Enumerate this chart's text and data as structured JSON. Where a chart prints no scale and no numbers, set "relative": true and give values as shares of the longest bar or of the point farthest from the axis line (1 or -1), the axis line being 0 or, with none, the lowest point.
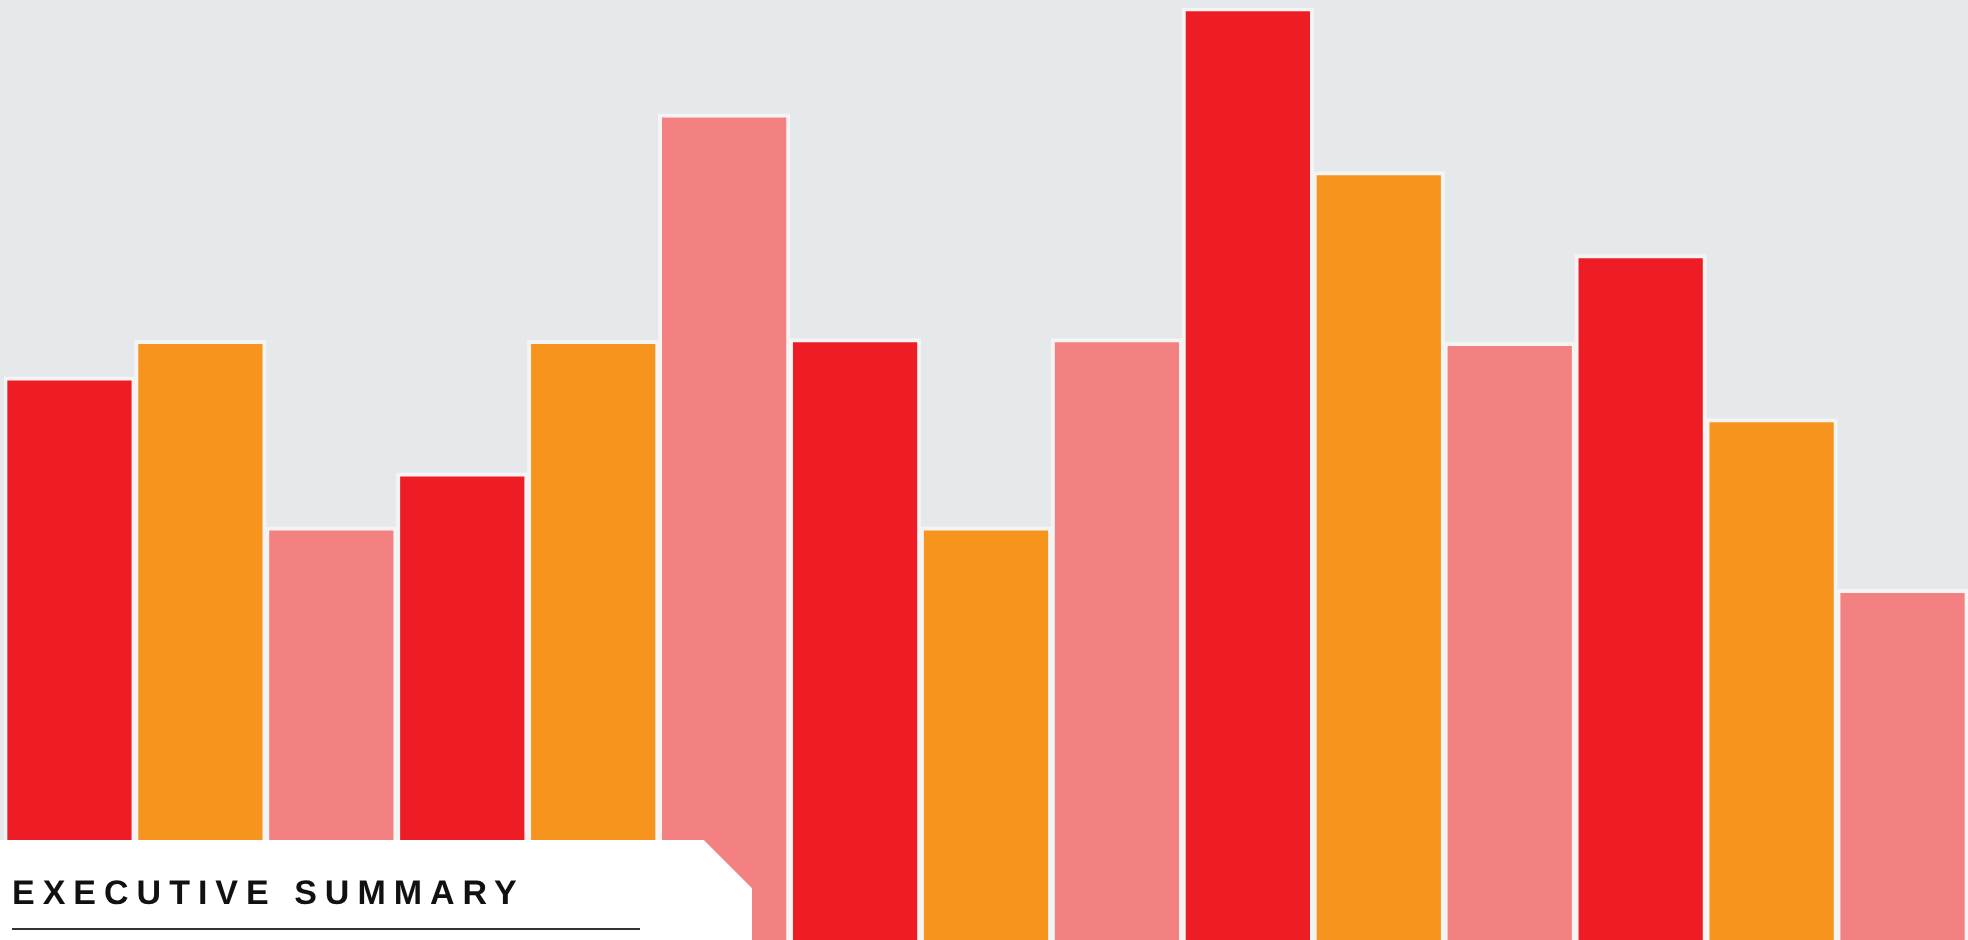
{
  "chart_data": {
    "type": "bar",
    "title": "EXECUTIVE SUMMARY",
    "relative": true,
    "categories": [
      null,
      null,
      null,
      null,
      null,
      null,
      null,
      null,
      null,
      null,
      null,
      null,
      null,
      null,
      null
    ],
    "values": [
      0.604,
      0.643,
      0.443,
      0.501,
      0.643,
      0.886,
      0.645,
      0.443,
      0.645,
      1,
      0.824,
      0.641,
      0.735,
      0.559,
      0.376
    ],
    "colors": [
      "#ee1c25",
      "#f7941d",
      "#f38181",
      "#ee1c25",
      "#f7941d",
      "#f38181",
      "#ee1c25",
      "#f7941d",
      "#f38181",
      "#ee1c25",
      "#f7941d",
      "#f38181",
      "#ee1c25",
      "#f7941d",
      "#f38181"
    ],
    "orientation": "vertical"
  }
}
